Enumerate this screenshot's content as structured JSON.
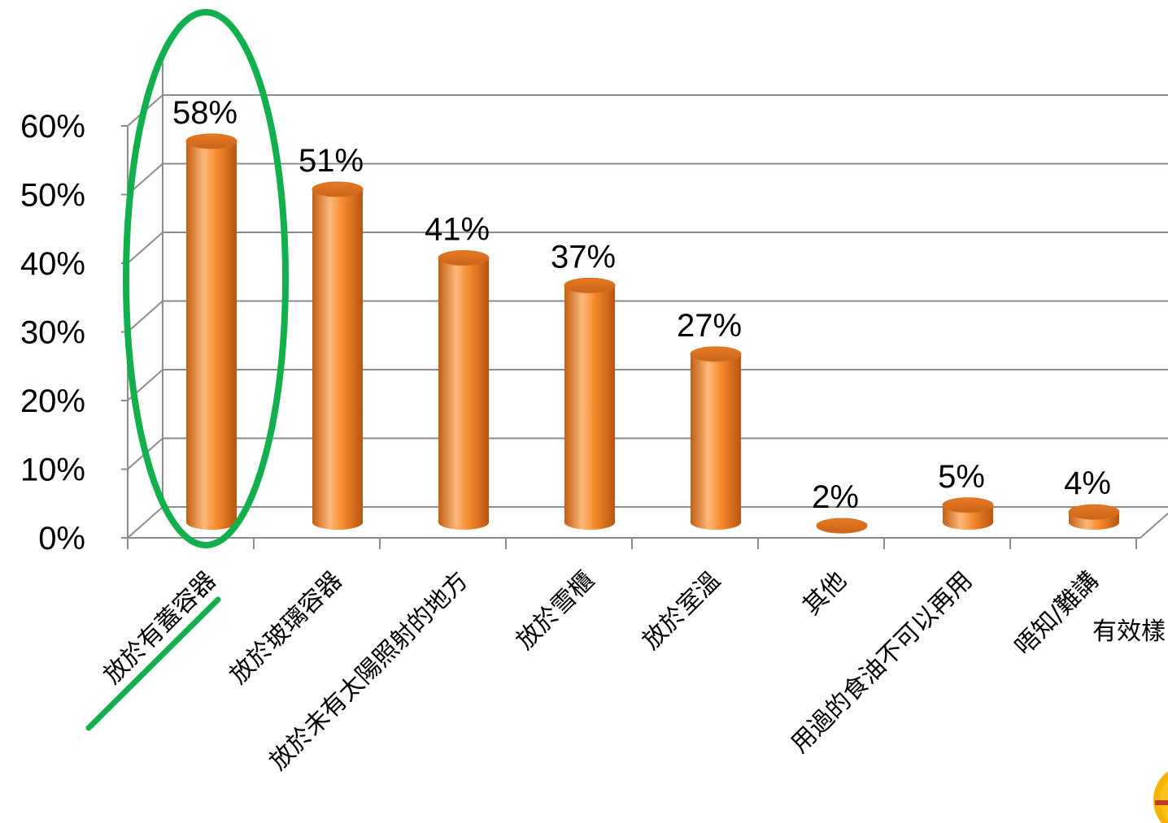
{
  "chart_data": {
    "type": "bar",
    "categories": [
      "放於有蓋容器",
      "放於玻璃容器",
      "放於未有太陽照射的地方",
      "放於雪櫃",
      "放於室溫",
      "其他",
      "用過的食油不可以再用",
      "唔知/難講"
    ],
    "values": [
      58,
      51,
      41,
      37,
      27,
      2,
      5,
      4
    ],
    "value_labels": [
      "58%",
      "51%",
      "41%",
      "37%",
      "27%",
      "2%",
      "5%",
      "4%"
    ],
    "y_tick_labels": [
      "0%",
      "10%",
      "20%",
      "30%",
      "40%",
      "50%",
      "60%"
    ],
    "ylim": [
      0,
      60
    ],
    "grid": true,
    "highlight_index": 0,
    "partial_label": "有效樣",
    "colors": {
      "bar": "#f58a2c",
      "bar_dark": "#c45e12",
      "bar_light": "#fbb87a",
      "highlight": "#12b04c",
      "grid": "#8c8c8c"
    }
  }
}
